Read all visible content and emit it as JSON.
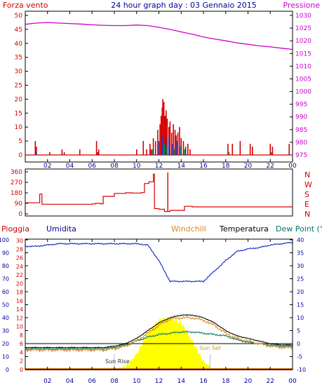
{
  "title": "24 hour graph day : 03 Gennaio 2015",
  "colors": {
    "background": "#ffffff",
    "frame": "#000000",
    "red": "#d40000",
    "magenta": "#cc00cc",
    "navy": "#000099",
    "blue": "#1a33cc",
    "green": "#008844",
    "yellow": "#ffff00",
    "orange": "#d98c1a",
    "teal": "#007766"
  },
  "x_ticks": [
    "02",
    "04",
    "06",
    "08",
    "10",
    "12",
    "14",
    "16",
    "18",
    "20",
    "22",
    "00"
  ],
  "chart_data": [
    {
      "type": "line",
      "name": "wind-pressure",
      "left_axis_label": "Forza vento",
      "right_axis_label": "Pressione",
      "ylim_left": [
        0,
        50
      ],
      "ylim_right": [
        975,
        1030
      ],
      "left_ticks": [
        0,
        5,
        10,
        15,
        20,
        25,
        30,
        35,
        40,
        45,
        50
      ],
      "right_ticks": [
        975,
        980,
        985,
        990,
        995,
        1000,
        1005,
        1010,
        1015,
        1020,
        1025,
        1030
      ],
      "x": [
        0,
        1,
        2,
        3,
        4,
        5,
        6,
        7,
        8,
        9,
        10,
        11,
        12,
        13,
        14,
        15,
        16,
        17,
        18,
        19,
        20,
        21,
        22,
        23,
        24
      ],
      "series": [
        {
          "name": "Pressione",
          "axis": "right",
          "color": "#cc00cc",
          "values": [
            1026.5,
            1027,
            1027.2,
            1027,
            1026.8,
            1026.6,
            1026.3,
            1026.1,
            1026,
            1026,
            1026.2,
            1026,
            1025.3,
            1024.5,
            1023.5,
            1022.6,
            1021.5,
            1020.7,
            1020,
            1019.2,
            1018.6,
            1018,
            1017.6,
            1017.1,
            1016.6
          ]
        },
        {
          "name": "Forza vento",
          "axis": "left",
          "color": "#d40000",
          "values": [
            0,
            1,
            0,
            0,
            0,
            0,
            0,
            0,
            0,
            0,
            0.5,
            2,
            14,
            7,
            6,
            2,
            0,
            0,
            0,
            0,
            0,
            0,
            0,
            0,
            0
          ]
        }
      ]
    },
    {
      "type": "line",
      "name": "wind-direction",
      "ylim": [
        0,
        360
      ],
      "ticks": [
        0,
        90,
        180,
        270,
        360
      ],
      "direction_labels": [
        "N",
        "W",
        "S",
        "E",
        "N"
      ],
      "x": [
        0,
        0.7,
        1.3,
        1.5,
        3.0,
        6.0,
        6.3,
        6.8,
        7.0,
        8.0,
        9.0,
        9.6,
        10.4,
        10.7,
        11.1,
        11.5,
        11.6,
        12.0,
        12.5,
        13.0,
        14.0,
        14.3,
        15.0,
        24.0
      ],
      "values": [
        95,
        95,
        170,
        82,
        82,
        85,
        90,
        85,
        150,
        175,
        180,
        178,
        182,
        260,
        275,
        340,
        45,
        40,
        20,
        30,
        30,
        65,
        60,
        60
      ]
    },
    {
      "type": "line",
      "name": "temperature-humidity-rain",
      "left_axis_labels": [
        "Pioggia",
        "Umidita"
      ],
      "right_axis_labels": [
        "Windchill",
        "Temperatura",
        "Dew Point (°C"
      ],
      "ylim_humidity": [
        0,
        100
      ],
      "humidity_ticks": [
        0,
        10,
        20,
        30,
        40,
        50,
        60,
        70,
        80,
        90,
        100
      ],
      "ylim_rain": [
        0,
        30
      ],
      "rain_ticks": [
        0,
        2,
        4,
        6,
        8,
        10,
        12,
        14,
        16,
        18,
        20,
        22,
        24,
        26,
        28,
        30
      ],
      "ylim_temperature": [
        -10,
        40
      ],
      "temperature_ticks": [
        -10,
        -5,
        0,
        5,
        10,
        15,
        20,
        25,
        30,
        35,
        40
      ],
      "annotations": [
        "Sun Rise",
        "Sun Set"
      ],
      "sunrise_hour": 8.0,
      "sunset_hour": 16.6,
      "x": [
        0,
        1,
        2,
        3,
        4,
        5,
        6,
        7,
        8,
        9,
        10,
        11,
        12,
        13,
        14,
        15,
        16,
        17,
        18,
        19,
        20,
        21,
        22,
        23,
        24
      ],
      "series": [
        {
          "name": "Umidita",
          "axis": "humidity",
          "color": "#1a33cc",
          "values": [
            95,
            95,
            96,
            97,
            97,
            97,
            97,
            97,
            97,
            97,
            97,
            96,
            84,
            68,
            68,
            68,
            68,
            76,
            84,
            91,
            93,
            94,
            96,
            97,
            98
          ]
        },
        {
          "name": "Temperatura",
          "axis": "temperature",
          "color": "#000000",
          "values": [
            -1.5,
            -1.5,
            -1.5,
            -1.5,
            -1.5,
            -1.5,
            -1.5,
            -1.5,
            -1,
            0,
            2,
            5,
            8,
            10,
            11,
            11,
            10,
            8,
            5,
            3,
            2,
            1,
            0,
            -0.5,
            -0.5
          ]
        },
        {
          "name": "Windchill",
          "axis": "temperature",
          "color": "#d98c1a",
          "values": [
            -2.5,
            -2.5,
            -2.5,
            -2.5,
            -2.5,
            -2.5,
            -2.5,
            -2.5,
            -2,
            -1,
            1,
            4,
            7,
            9.5,
            10,
            10,
            9,
            7,
            4,
            2,
            1,
            0,
            -1,
            -1.5,
            -1.5
          ]
        },
        {
          "name": "Dew Point (°C",
          "axis": "temperature",
          "color": "#007766",
          "values": [
            -2,
            -2,
            -2,
            -2,
            -2,
            -2,
            -2,
            -2,
            -1.5,
            -0.5,
            1,
            2.5,
            3.5,
            4,
            4.5,
            4.5,
            4,
            3.5,
            3,
            1.5,
            0.5,
            0,
            -0.5,
            -1,
            -1
          ]
        },
        {
          "name": "Pioggia",
          "axis": "rain",
          "color": "#d40000",
          "values": [
            0,
            0,
            0,
            0,
            0,
            0,
            0,
            0,
            0,
            0,
            0,
            0,
            0,
            0,
            0,
            0,
            0,
            0,
            0,
            0,
            0,
            0,
            0,
            0,
            0
          ]
        },
        {
          "name": "solar",
          "axis": "humidity",
          "color": "#ffff00",
          "values": [
            0,
            0,
            0,
            0,
            0,
            0,
            0,
            0,
            0,
            2,
            12,
            28,
            38,
            40,
            36,
            22,
            6,
            0,
            0,
            0,
            0,
            0,
            0,
            0,
            0
          ]
        }
      ]
    }
  ]
}
